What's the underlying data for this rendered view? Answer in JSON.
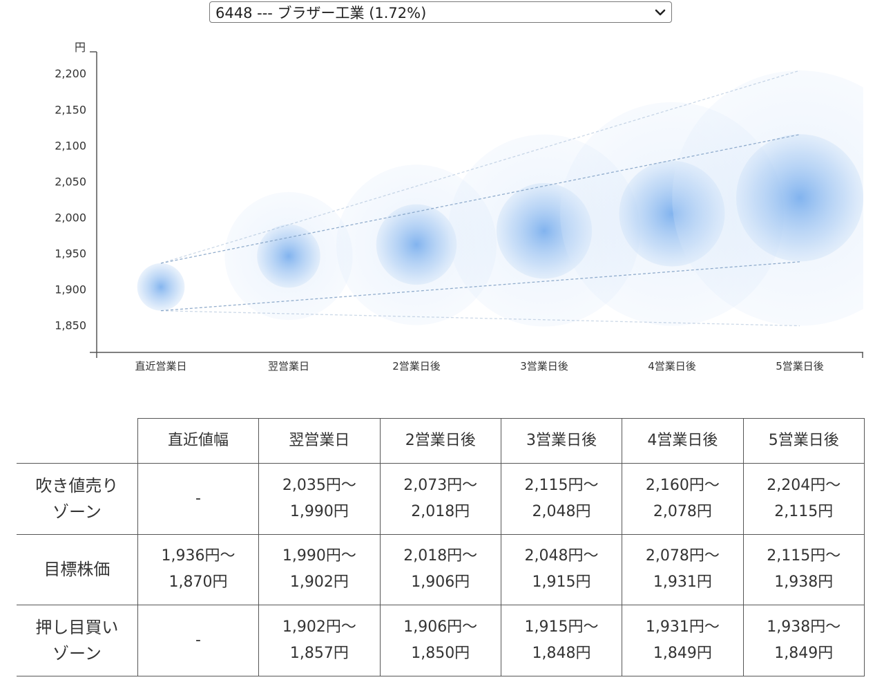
{
  "selector": {
    "selected": "6448 --- ブラザー工業 (1.72%)"
  },
  "chart_data": {
    "type": "scatter",
    "ylabel": "円",
    "yticks": [
      "2,200",
      "2,150",
      "2,100",
      "2,050",
      "2,000",
      "1,950",
      "1,900",
      "1,850"
    ],
    "ytick_values": [
      2200,
      2150,
      2100,
      2050,
      2000,
      1950,
      1900,
      1850
    ],
    "ylim": [
      1812,
      2230
    ],
    "categories": [
      "直近営業日",
      "翌営業日",
      "2営業日後",
      "3営業日後",
      "4営業日後",
      "5営業日後"
    ],
    "center": [
      1903,
      1946,
      1962,
      1981,
      2005,
      2027
    ],
    "target_high": [
      1936,
      1990,
      2018,
      2048,
      2078,
      2115
    ],
    "target_low": [
      1870,
      1902,
      1906,
      1915,
      1931,
      1938
    ],
    "sell_high": [
      null,
      2035,
      2073,
      2115,
      2160,
      2204
    ],
    "buy_low": [
      null,
      1857,
      1850,
      1848,
      1849,
      1849
    ],
    "colors": {
      "bubble": "#6fa8ec",
      "line": "#7f9fc4",
      "axis": "#555555"
    }
  },
  "table": {
    "columns": [
      "直近値幅",
      "翌営業日",
      "2営業日後",
      "3営業日後",
      "4営業日後",
      "5営業日後"
    ],
    "rows": [
      {
        "label": [
          "吹き値売り",
          "ゾーン"
        ],
        "cells": [
          [
            "-"
          ],
          [
            "2,035円〜",
            "1,990円"
          ],
          [
            "2,073円〜",
            "2,018円"
          ],
          [
            "2,115円〜",
            "2,048円"
          ],
          [
            "2,160円〜",
            "2,078円"
          ],
          [
            "2,204円〜",
            "2,115円"
          ]
        ]
      },
      {
        "label": [
          "目標株価"
        ],
        "cells": [
          [
            "1,936円〜",
            "1,870円"
          ],
          [
            "1,990円〜",
            "1,902円"
          ],
          [
            "2,018円〜",
            "1,906円"
          ],
          [
            "2,048円〜",
            "1,915円"
          ],
          [
            "2,078円〜",
            "1,931円"
          ],
          [
            "2,115円〜",
            "1,938円"
          ]
        ]
      },
      {
        "label": [
          "押し目買い",
          "ゾーン"
        ],
        "cells": [
          [
            "-"
          ],
          [
            "1,902円〜",
            "1,857円"
          ],
          [
            "1,906円〜",
            "1,850円"
          ],
          [
            "1,915円〜",
            "1,848円"
          ],
          [
            "1,931円〜",
            "1,849円"
          ],
          [
            "1,938円〜",
            "1,849円"
          ]
        ]
      }
    ]
  }
}
